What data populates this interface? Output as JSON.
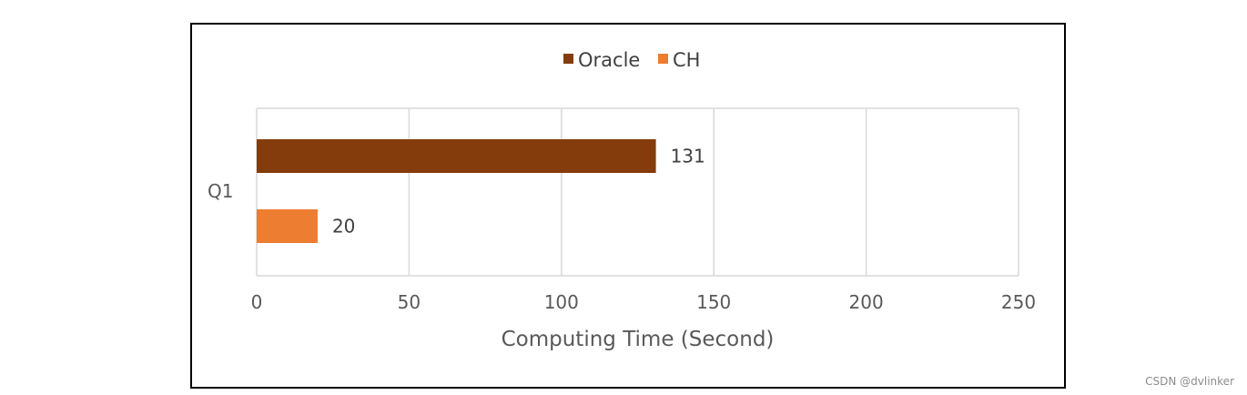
{
  "chart_data": {
    "type": "bar",
    "orientation": "horizontal",
    "categories": [
      "Q1"
    ],
    "series": [
      {
        "name": "Oracle",
        "values": [
          131
        ],
        "color": "#843c0c"
      },
      {
        "name": "CH",
        "values": [
          20
        ],
        "color": "#ed7d31"
      }
    ],
    "xlabel": "Computing Time (Second)",
    "ylabel": "",
    "xlim": [
      0,
      250
    ],
    "x_ticks": [
      0,
      50,
      100,
      150,
      200,
      250
    ],
    "grid": "vertical",
    "legend_position": "top",
    "data_labels": true
  },
  "watermark": "CSDN @dvlinker",
  "colors": {
    "grid": "#d9d9d9",
    "frame": "#000000"
  }
}
